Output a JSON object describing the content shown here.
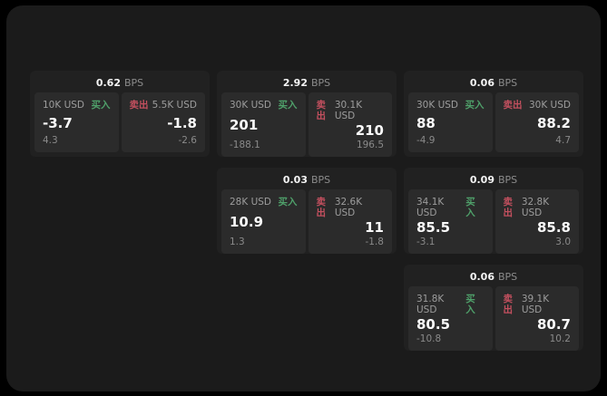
{
  "labels": {
    "bps_unit": "BPS",
    "buy": "买入",
    "sell": "卖出"
  },
  "colors": {
    "buy-green": "#4fa06a",
    "sell-red": "#c4505f",
    "container-bg": "#1b1b1b",
    "card-bg": "#212121",
    "panel-bg": "#2b2b2b"
  },
  "cards": [
    {
      "bps": "0.62",
      "buy": {
        "amount": "10K USD",
        "price": "-3.7",
        "delta": "4.3"
      },
      "sell": {
        "amount": "5.5K USD",
        "price": "-1.8",
        "delta": "-2.6"
      }
    },
    {
      "bps": "2.92",
      "buy": {
        "amount": "30K USD",
        "price": "201",
        "delta": "-188.1"
      },
      "sell": {
        "amount": "30.1K USD",
        "price": "210",
        "delta": "196.5"
      }
    },
    {
      "bps": "0.06",
      "buy": {
        "amount": "30K USD",
        "price": "88",
        "delta": "-4.9"
      },
      "sell": {
        "amount": "30K USD",
        "price": "88.2",
        "delta": "4.7"
      }
    },
    {
      "bps": "0.03",
      "buy": {
        "amount": "28K USD",
        "price": "10.9",
        "delta": "1.3"
      },
      "sell": {
        "amount": "32.6K USD",
        "price": "11",
        "delta": "-1.8"
      }
    },
    {
      "bps": "0.09",
      "buy": {
        "amount": "34.1K USD",
        "price": "85.5",
        "delta": "-3.1"
      },
      "sell": {
        "amount": "32.8K USD",
        "price": "85.8",
        "delta": "3.0"
      }
    },
    {
      "bps": "0.06",
      "buy": {
        "amount": "31.8K USD",
        "price": "80.5",
        "delta": "-10.8"
      },
      "sell": {
        "amount": "39.1K USD",
        "price": "80.7",
        "delta": "10.2"
      }
    }
  ]
}
